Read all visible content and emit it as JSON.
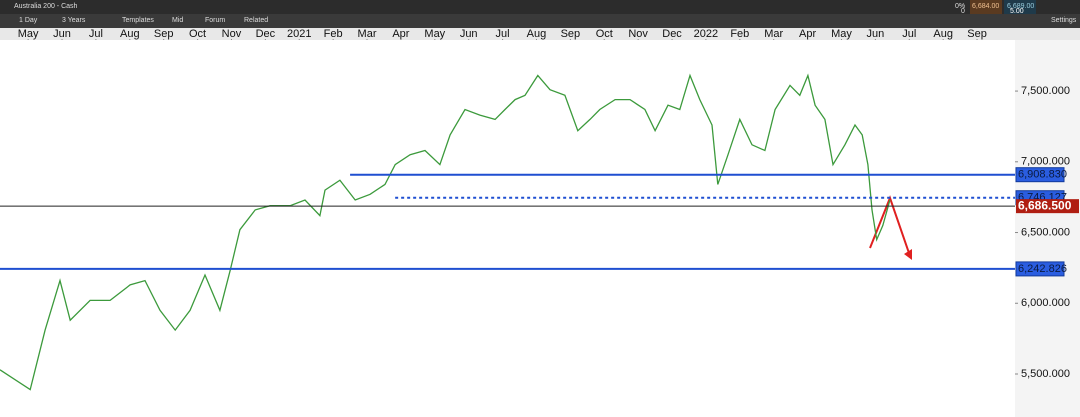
{
  "toolbar": {
    "instrument": "Australia 200 - Cash",
    "interval": "1 Day",
    "range": "3 Years",
    "templates": "Templates",
    "price_type": "Mid",
    "forum": "Forum",
    "related": "Related",
    "settings": "Settings",
    "change": "0%",
    "change_points": "0",
    "sell": "6,684.00",
    "buy": "6,689.00",
    "spread": "5.00"
  },
  "chart_data": {
    "type": "line",
    "xlim": [
      -0.83,
      29.12
    ],
    "xticks": [
      {
        "value": 0,
        "label": "May"
      },
      {
        "value": 1,
        "label": "Jun"
      },
      {
        "value": 2,
        "label": "Jul"
      },
      {
        "value": 3,
        "label": "Aug"
      },
      {
        "value": 4,
        "label": "Sep"
      },
      {
        "value": 5,
        "label": "Oct"
      },
      {
        "value": 6,
        "label": "Nov"
      },
      {
        "value": 7,
        "label": "Dec"
      },
      {
        "value": 8,
        "label": "2021"
      },
      {
        "value": 9,
        "label": "Feb"
      },
      {
        "value": 10,
        "label": "Mar"
      },
      {
        "value": 11,
        "label": "Apr"
      },
      {
        "value": 12,
        "label": "May"
      },
      {
        "value": 13,
        "label": "Jun"
      },
      {
        "value": 14,
        "label": "Jul"
      },
      {
        "value": 15,
        "label": "Aug"
      },
      {
        "value": 16,
        "label": "Sep"
      },
      {
        "value": 17,
        "label": "Oct"
      },
      {
        "value": 18,
        "label": "Nov"
      },
      {
        "value": 19,
        "label": "Dec"
      },
      {
        "value": 20,
        "label": "2022"
      },
      {
        "value": 21,
        "label": "Feb"
      },
      {
        "value": 22,
        "label": "Mar"
      },
      {
        "value": 23,
        "label": "Apr"
      },
      {
        "value": 24,
        "label": "May"
      },
      {
        "value": 25,
        "label": "Jun"
      },
      {
        "value": 26,
        "label": "Jul"
      },
      {
        "value": 27,
        "label": "Aug"
      },
      {
        "value": 28,
        "label": "Sep"
      }
    ],
    "ylim": [
      5196,
      7861
    ],
    "yticks": [
      {
        "value": 5500,
        "label": "5,500.000"
      },
      {
        "value": 6000,
        "label": "6,000.000"
      },
      {
        "value": 6500,
        "label": "6,500.000"
      },
      {
        "value": 7000,
        "label": "7,000.000"
      },
      {
        "value": 7500,
        "label": "7,500.000"
      }
    ],
    "series": [
      {
        "color": "#3c9a3c",
        "x": [
          -0.83,
          0.06,
          0.5,
          0.94,
          1.24,
          1.83,
          2.42,
          3.01,
          3.45,
          3.89,
          4.34,
          4.78,
          5.22,
          5.66,
          5.96,
          6.25,
          6.7,
          7.14,
          7.73,
          8.17,
          8.61,
          8.76,
          9.2,
          9.65,
          10.09,
          10.53,
          10.83,
          11.27,
          11.71,
          12.15,
          12.45,
          12.89,
          13.33,
          13.78,
          14.07,
          14.37,
          14.66,
          15.04,
          15.4,
          15.84,
          16.22,
          16.58,
          16.87,
          17.32,
          17.76,
          18.2,
          18.5,
          18.88,
          19.23,
          19.53,
          19.82,
          20.18,
          20.35,
          20.65,
          21.0,
          21.36,
          21.74,
          22.04,
          22.48,
          22.77,
          23.01,
          23.22,
          23.51,
          23.75,
          24.1,
          24.4,
          24.61,
          24.78,
          24.9,
          25.04,
          25.22,
          25.43
        ],
        "values": [
          5530,
          5390,
          5810,
          6160,
          5880,
          6020,
          6020,
          6130,
          6160,
          5950,
          5810,
          5950,
          6200,
          5950,
          6230,
          6520,
          6660,
          6690,
          6690,
          6730,
          6620,
          6800,
          6870,
          6730,
          6770,
          6840,
          6980,
          7050,
          7080,
          6980,
          7190,
          7370,
          7330,
          7300,
          7370,
          7440,
          7470,
          7610,
          7510,
          7470,
          7220,
          7300,
          7370,
          7440,
          7440,
          7370,
          7220,
          7400,
          7370,
          7610,
          7440,
          7260,
          6840,
          7050,
          7300,
          7120,
          7080,
          7370,
          7540,
          7470,
          7610,
          7400,
          7300,
          6980,
          7120,
          7260,
          7190,
          6980,
          6660,
          6450,
          6550,
          6730
        ]
      }
    ],
    "levels": [
      {
        "value": 6908.83,
        "label": "6,908.830",
        "color": "#1f4fd1",
        "style": "solid",
        "start": 9.5
      },
      {
        "value": 6746.127,
        "label": "6,746.127",
        "color": "#1f4fd1",
        "style": "dotted",
        "start": 10.83
      },
      {
        "value": 6686.5,
        "label": "6,686.500",
        "color": "#222222",
        "style": "current",
        "start": -0.83
      },
      {
        "value": 6242.826,
        "label": "6,242.826",
        "color": "#1f4fd1",
        "style": "solid",
        "start": -0.83
      }
    ]
  }
}
